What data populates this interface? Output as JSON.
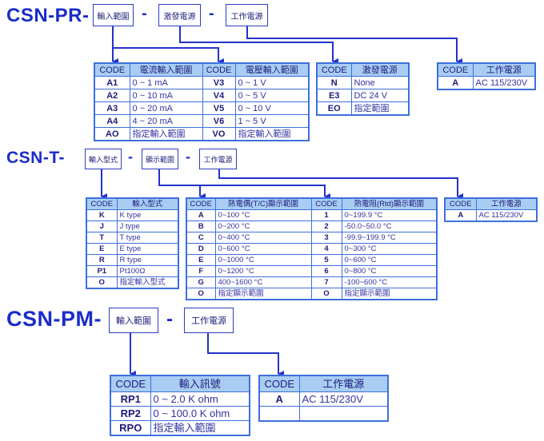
{
  "colors": {
    "title": "#1a2cc8",
    "connector": "#2233c8",
    "header_bg": "#a9cdf2",
    "border": "#3d6fdc"
  },
  "pr": {
    "title": "CSN-PR-",
    "boxes": [
      "輸入範圍",
      "激發電源",
      "工作電源"
    ],
    "dash": "-",
    "input_table": {
      "headers": [
        "CODE",
        "電流輸入範圍",
        "CODE",
        "電壓輸入範圍"
      ],
      "rows": [
        [
          "A1",
          "0 ~ 1 mA",
          "V3",
          "0 ~ 1 V"
        ],
        [
          "A2",
          "0 ~ 10 mA",
          "V4",
          "0 ~ 5 V"
        ],
        [
          "A3",
          "0 ~ 20 mA",
          "V5",
          "0 ~ 10 V"
        ],
        [
          "A4",
          "4 ~ 20 mA",
          "V6",
          "1 ~ 5 V"
        ],
        [
          "AO",
          "指定輸入範圍",
          "VO",
          "指定輸入範圍"
        ]
      ]
    },
    "excitation_table": {
      "headers": [
        "CODE",
        "激發電源"
      ],
      "rows": [
        [
          "N",
          "None"
        ],
        [
          "E3",
          "DC 24 V"
        ],
        [
          "EO",
          "指定範圍"
        ]
      ]
    },
    "power_table": {
      "headers": [
        "CODE",
        "工作電源"
      ],
      "rows": [
        [
          "A",
          "AC 115/230V"
        ]
      ]
    }
  },
  "t": {
    "title": "CSN-T-",
    "boxes": [
      "輸入型式",
      "顯示範圍",
      "工作電源"
    ],
    "dash": "-",
    "input_table": {
      "headers": [
        "CODE",
        "輸入型式"
      ],
      "rows": [
        [
          "K",
          "K type"
        ],
        [
          "J",
          "J type"
        ],
        [
          "T",
          "T type"
        ],
        [
          "E",
          "E type"
        ],
        [
          "R",
          "R type"
        ],
        [
          "P1",
          "Pt100Ω"
        ],
        [
          "O",
          "指定輸入型式"
        ]
      ]
    },
    "display_table": {
      "headers": [
        "CODE",
        "熱電偶(T/C)顯示範圍",
        "CODE",
        "熱電阻(Rtd)顯示範圍"
      ],
      "rows": [
        [
          "A",
          "0~100 °C",
          "1",
          "0~199.9 °C"
        ],
        [
          "B",
          "0~200 °C",
          "2",
          "-50.0~50.0 °C"
        ],
        [
          "C",
          "0~400 °C",
          "3",
          "-99.9~199.9 °C"
        ],
        [
          "D",
          "0~600 °C",
          "4",
          "0~300 °C"
        ],
        [
          "E",
          "0~1000 °C",
          "5",
          "0~600 °C"
        ],
        [
          "F",
          "0~1200 °C",
          "6",
          "0~800 °C"
        ],
        [
          "G",
          "400~1600 °C",
          "7",
          "-100~600 °C"
        ],
        [
          "O",
          "指定顯示範圍",
          "O",
          "指定顯示範圍"
        ]
      ]
    },
    "power_table": {
      "headers": [
        "CODE",
        "工作電源"
      ],
      "rows": [
        [
          "A",
          "AC 115/230V"
        ]
      ]
    }
  },
  "pm": {
    "title": "CSN-PM-",
    "boxes": [
      "輸入範圍",
      "工作電源"
    ],
    "dash": "-",
    "input_table": {
      "headers": [
        "CODE",
        "輸入訊號"
      ],
      "rows": [
        [
          "RP1",
          "0 ~ 2.0 K ohm"
        ],
        [
          "RP2",
          "0 ~ 100.0 K ohm"
        ],
        [
          "RPO",
          "指定輸入範圍"
        ]
      ]
    },
    "power_table": {
      "headers": [
        "CODE",
        "工作電源"
      ],
      "rows": [
        [
          "A",
          "AC 115/230V"
        ],
        [
          "",
          ""
        ]
      ]
    }
  }
}
